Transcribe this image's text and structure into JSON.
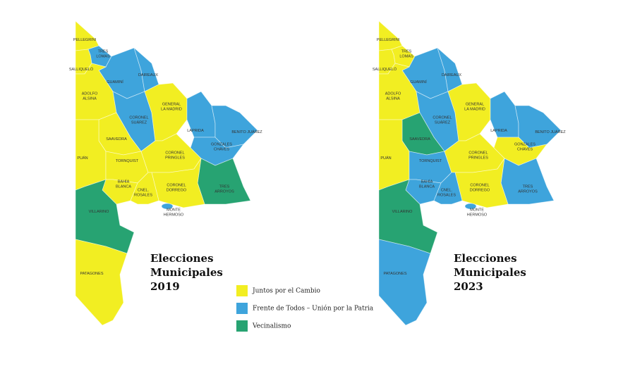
{
  "legend": [
    {
      "label": "Juntos por el Cambio",
      "color": "#f2ee22"
    },
    {
      "label": "Frente de Todos – Unión por la Patria",
      "color": "#3ea4dc"
    },
    {
      "label": "Vecinalismo",
      "color": "#27a372"
    }
  ],
  "maps": [
    {
      "title": [
        "Elecciones",
        "Municipales",
        "2019"
      ],
      "districts": [
        {
          "label": [
            "PELLEGRINI"
          ],
          "color": "#f2ee22"
        },
        {
          "label": [
            "TRES",
            "LOMAS"
          ],
          "color": "#3ea4dc"
        },
        {
          "label": [
            "SALLIQUELÓ"
          ],
          "color": "#f2ee22"
        },
        {
          "label": [
            "GUAMINÍ"
          ],
          "color": "#3ea4dc"
        },
        {
          "label": [
            "DAIREAUX"
          ],
          "color": "#3ea4dc"
        },
        {
          "label": [
            "ADOLFO",
            "ALSINA"
          ],
          "color": "#f2ee22"
        },
        {
          "label": [
            "CORONEL",
            "SUÁREZ"
          ],
          "color": "#3ea4dc"
        },
        {
          "label": [
            "GENERAL",
            "LA MADRID"
          ],
          "color": "#f2ee22"
        },
        {
          "label": [
            "LAPRIDA"
          ],
          "color": "#3ea4dc"
        },
        {
          "label": [
            "BENITO JUÁREZ"
          ],
          "color": "#3ea4dc"
        },
        {
          "label": [
            "GONZALES",
            "CHAVES"
          ],
          "color": "#3ea4dc"
        },
        {
          "label": [
            "TRES",
            "ARROYOS"
          ],
          "color": "#27a372"
        },
        {
          "label": [
            "SAAVEDRA"
          ],
          "color": "#f2ee22"
        },
        {
          "label": [
            "PUÁN"
          ],
          "color": "#f2ee22"
        },
        {
          "label": [
            "TORNQUIST"
          ],
          "color": "#f2ee22"
        },
        {
          "label": [
            "CORONEL",
            "PRINGLES"
          ],
          "color": "#f2ee22"
        },
        {
          "label": [
            "CORONEL",
            "DORREGO"
          ],
          "color": "#f2ee22"
        },
        {
          "label": [
            "BAHÍA",
            "BLANCA"
          ],
          "color": "#f2ee22"
        },
        {
          "label": [
            "CNEL.",
            "ROSALES"
          ],
          "color": "#f2ee22"
        },
        {
          "label": [
            "MONTE",
            "HERMOSO"
          ],
          "color": "#3ea4dc"
        },
        {
          "label": [
            "VILLARINO"
          ],
          "color": "#27a372"
        },
        {
          "label": [
            "PATAGONES"
          ],
          "color": "#f2ee22"
        }
      ]
    },
    {
      "title": [
        "Elecciones",
        "Municipales",
        "2023"
      ],
      "districts": [
        {
          "label": [
            "PELLEGRINI"
          ],
          "color": "#f2ee22"
        },
        {
          "label": [
            "TRES",
            "LOMAS"
          ],
          "color": "#f2ee22"
        },
        {
          "label": [
            "SALLIQUELÓ"
          ],
          "color": "#f2ee22"
        },
        {
          "label": [
            "GUAMINÍ"
          ],
          "color": "#3ea4dc"
        },
        {
          "label": [
            "DAIREAUX"
          ],
          "color": "#3ea4dc"
        },
        {
          "label": [
            "ADOLFO",
            "ALSINA"
          ],
          "color": "#f2ee22"
        },
        {
          "label": [
            "CORONEL",
            "SUÁREZ"
          ],
          "color": "#3ea4dc"
        },
        {
          "label": [
            "GENERAL",
            "LA MADRID"
          ],
          "color": "#f2ee22"
        },
        {
          "label": [
            "LAPRIDA"
          ],
          "color": "#3ea4dc"
        },
        {
          "label": [
            "BENITO JUÁREZ"
          ],
          "color": "#3ea4dc"
        },
        {
          "label": [
            "GONZALES",
            "CHAVES"
          ],
          "color": "#f2ee22"
        },
        {
          "label": [
            "TRES",
            "ARROYOS"
          ],
          "color": "#3ea4dc"
        },
        {
          "label": [
            "SAAVEDRA"
          ],
          "color": "#27a372"
        },
        {
          "label": [
            "PUÁN"
          ],
          "color": "#f2ee22"
        },
        {
          "label": [
            "TORNQUIST"
          ],
          "color": "#3ea4dc"
        },
        {
          "label": [
            "CORONEL",
            "PRINGLES"
          ],
          "color": "#f2ee22"
        },
        {
          "label": [
            "CORONEL",
            "DORREGO"
          ],
          "color": "#f2ee22"
        },
        {
          "label": [
            "BAHÍA",
            "BLANCA"
          ],
          "color": "#3ea4dc"
        },
        {
          "label": [
            "CNEL.",
            "ROSALES"
          ],
          "color": "#3ea4dc"
        },
        {
          "label": [
            "MONTE",
            "HERMOSO"
          ],
          "color": "#3ea4dc"
        },
        {
          "label": [
            "VILLARINO"
          ],
          "color": "#27a372"
        },
        {
          "label": [
            "PATAGONES"
          ],
          "color": "#3ea4dc"
        }
      ]
    }
  ]
}
